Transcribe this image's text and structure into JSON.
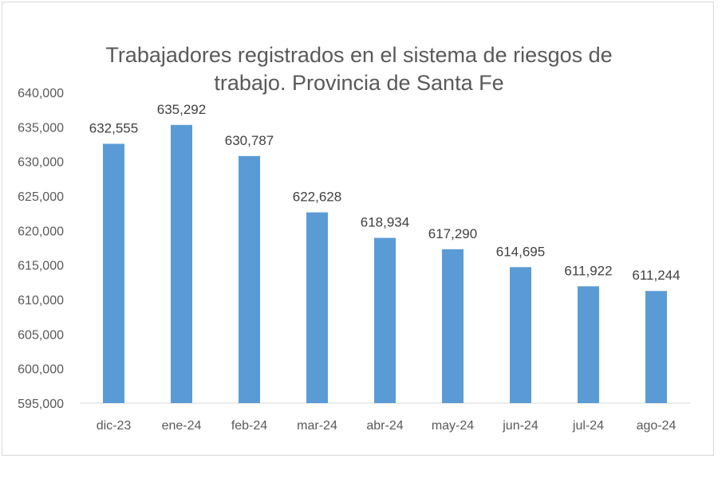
{
  "chart_data": {
    "type": "bar",
    "title_lines": [
      "Trabajadores registrados en el sistema de riesgos de",
      "trabajo. Provincia de Santa Fe"
    ],
    "categories": [
      "dic-23",
      "ene-24",
      "feb-24",
      "mar-24",
      "abr-24",
      "may-24",
      "jun-24",
      "jul-24",
      "ago-24"
    ],
    "values": [
      632555,
      635292,
      630787,
      622628,
      618934,
      617290,
      614695,
      611922,
      611244
    ],
    "data_labels": [
      "632,555",
      "635,292",
      "630,787",
      "622,628",
      "618,934",
      "617,290",
      "614,695",
      "611,922",
      "611,244"
    ],
    "ylim": [
      595000,
      640000
    ],
    "yticks": [
      595000,
      600000,
      605000,
      610000,
      615000,
      620000,
      625000,
      630000,
      635000,
      640000
    ],
    "ytick_labels": [
      "595,000",
      "600,000",
      "605,000",
      "610,000",
      "615,000",
      "620,000",
      "625,000",
      "630,000",
      "635,000",
      "640,000"
    ],
    "bar_color": "#5b9bd5",
    "grid": false,
    "legend": "none"
  }
}
